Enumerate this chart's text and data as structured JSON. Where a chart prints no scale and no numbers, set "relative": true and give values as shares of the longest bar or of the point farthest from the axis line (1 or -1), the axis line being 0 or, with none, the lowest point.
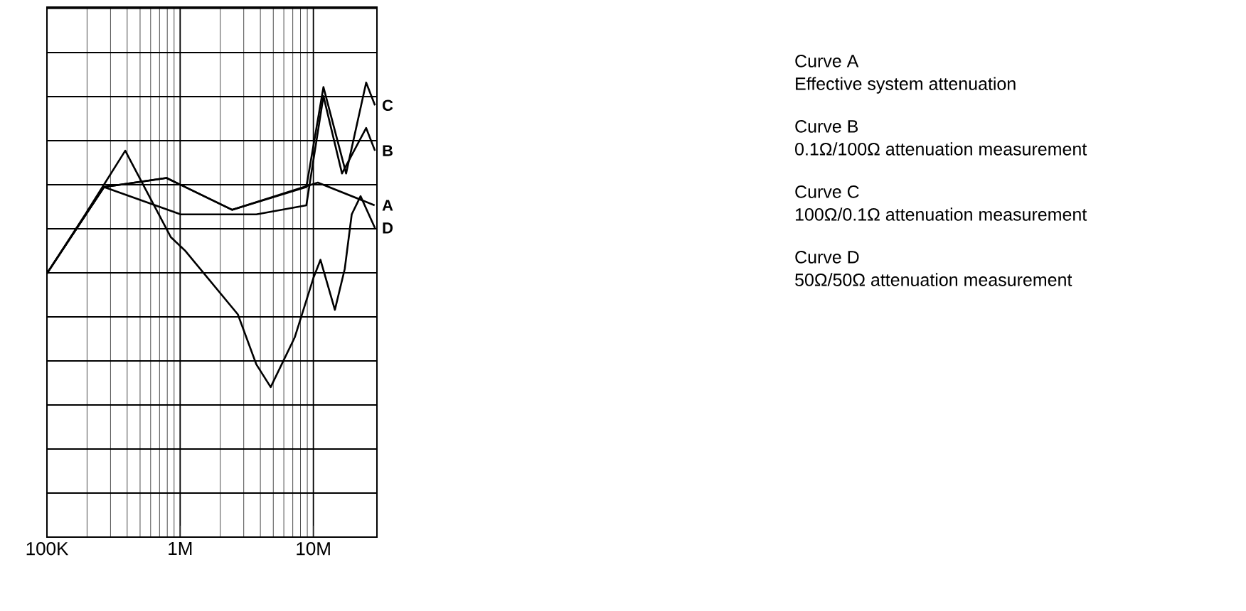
{
  "chart_data": {
    "type": "line",
    "relative": true,
    "log": "x",
    "grid": true,
    "tick_labels": "x",
    "marker": "none",
    "line_style": "solid",
    "xlim": [
      100000,
      30000000
    ],
    "xticks": [
      {
        "value": 100000,
        "label": "100K"
      },
      {
        "value": 1000000,
        "label": "1M"
      },
      {
        "value": 10000000,
        "label": "10M"
      }
    ],
    "series": [
      {
        "name": "C",
        "color": "#000000",
        "x": [
          100000,
          268000,
          790000,
          2460000,
          8850000,
          11900000,
          17600000,
          24900000,
          29000000
        ],
        "values": [
          0.58,
          0.77,
          0.79,
          0.72,
          0.77,
          0.99,
          0.8,
          1.0,
          0.95
        ]
      },
      {
        "name": "B",
        "color": "#000000",
        "x": [
          100000,
          268000,
          1010000,
          3730000,
          8850000,
          11900000,
          16400000,
          24900000,
          29000000
        ],
        "values": [
          0.58,
          0.77,
          0.71,
          0.71,
          0.73,
          0.97,
          0.8,
          0.9,
          0.85
        ]
      },
      {
        "name": "A",
        "color": "#000000",
        "x": [
          100000,
          268000,
          790000,
          2460000,
          10800000,
          28800000
        ],
        "values": [
          0.58,
          0.77,
          0.79,
          0.72,
          0.78,
          0.73
        ]
      },
      {
        "name": "D",
        "color": "#000000",
        "x": [
          100000,
          194000,
          387000,
          850000,
          1090000,
          2710000,
          3730000,
          4780000,
          7260000,
          10000000,
          11300000,
          14500000,
          17200000,
          19400000,
          22600000,
          29000000
        ],
        "values": [
          0.58,
          0.71,
          0.85,
          0.66,
          0.63,
          0.49,
          0.38,
          0.33,
          0.44,
          0.57,
          0.61,
          0.5,
          0.59,
          0.71,
          0.75,
          0.68
        ]
      }
    ],
    "annotations": [
      "Curve A",
      "Effective system attenuation",
      "Curve B",
      "0.1Ω/100Ω attenuation measurement",
      "Curve C",
      "100Ω/0.1Ω attenuation measurement",
      "Curve D",
      "50Ω/50Ω attenuation measurement"
    ]
  }
}
